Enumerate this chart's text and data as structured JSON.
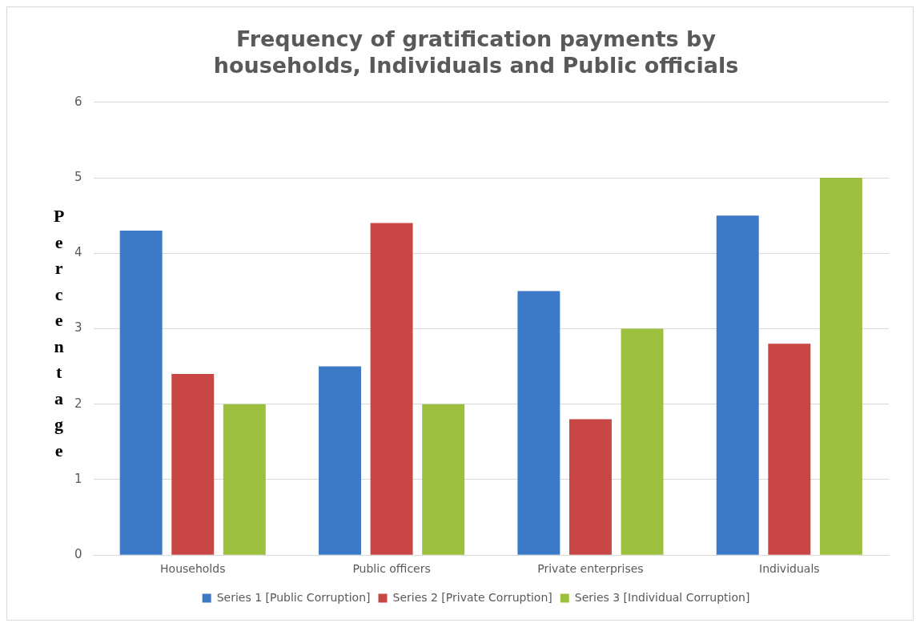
{
  "chart_data": {
    "type": "bar",
    "title": "Frequency of gratification payments by households, Individuals and Public officials",
    "ylabel": "Percentage",
    "categories": [
      "Households",
      "Public officers",
      "Private enterprises",
      "Individuals"
    ],
    "series": [
      {
        "name": "Series 1 [Public Corruption]",
        "color": "#3c79c6",
        "values": [
          4.3,
          2.5,
          3.5,
          4.5
        ]
      },
      {
        "name": "Series 2 [Private Corruption]",
        "color": "#c84644",
        "values": [
          2.4,
          4.4,
          1.8,
          2.8
        ]
      },
      {
        "name": "Series 3 [Individual Corruption]",
        "color": "#9cbf3e",
        "values": [
          2.0,
          2.0,
          3.0,
          5.0
        ]
      }
    ],
    "ylim": [
      0,
      6
    ],
    "yticks": [
      0,
      1,
      2,
      3,
      4,
      5,
      6
    ],
    "grid": "y",
    "legend": "bottom"
  }
}
